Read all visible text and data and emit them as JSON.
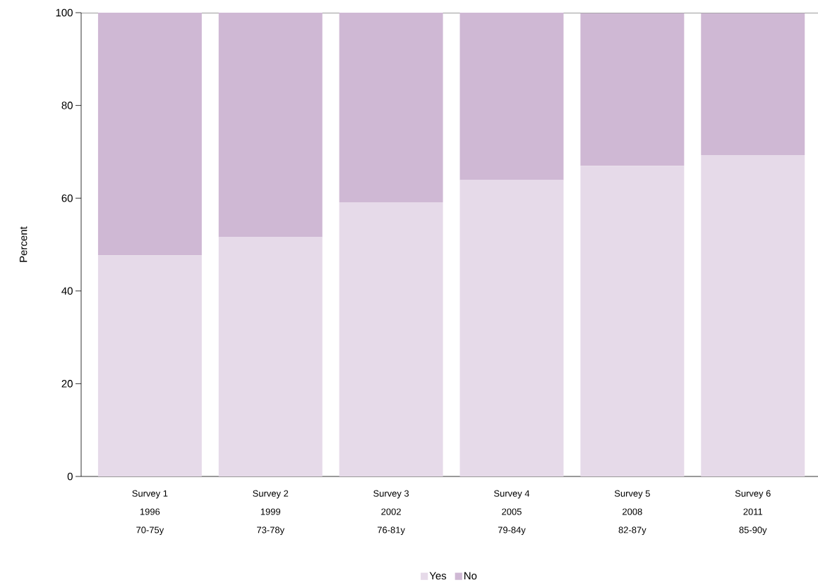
{
  "chart_data": {
    "type": "bar",
    "stacked": true,
    "ylabel": "Percent",
    "categories": [
      "Survey 1 1996 70-75y",
      "Survey 2 1999 73-78y",
      "Survey 3 2002 76-81y",
      "Survey 4 2005 79-84y",
      "Survey 5 2008 82-87y",
      "Survey 6 2011 85-90y"
    ],
    "series": [
      {
        "name": "Yes",
        "color": "#e6dae9",
        "values": [
          47.7,
          51.6,
          59.1,
          63.9,
          67.0,
          69.3
        ]
      },
      {
        "name": "No",
        "color": "#cfb8d4",
        "values": [
          52.3,
          48.4,
          40.9,
          36.1,
          32.9,
          30.6
        ]
      }
    ],
    "ylim": [
      0,
      100
    ],
    "yticks": [
      0,
      20,
      40,
      60,
      80,
      100
    ],
    "legend": "bottom"
  }
}
